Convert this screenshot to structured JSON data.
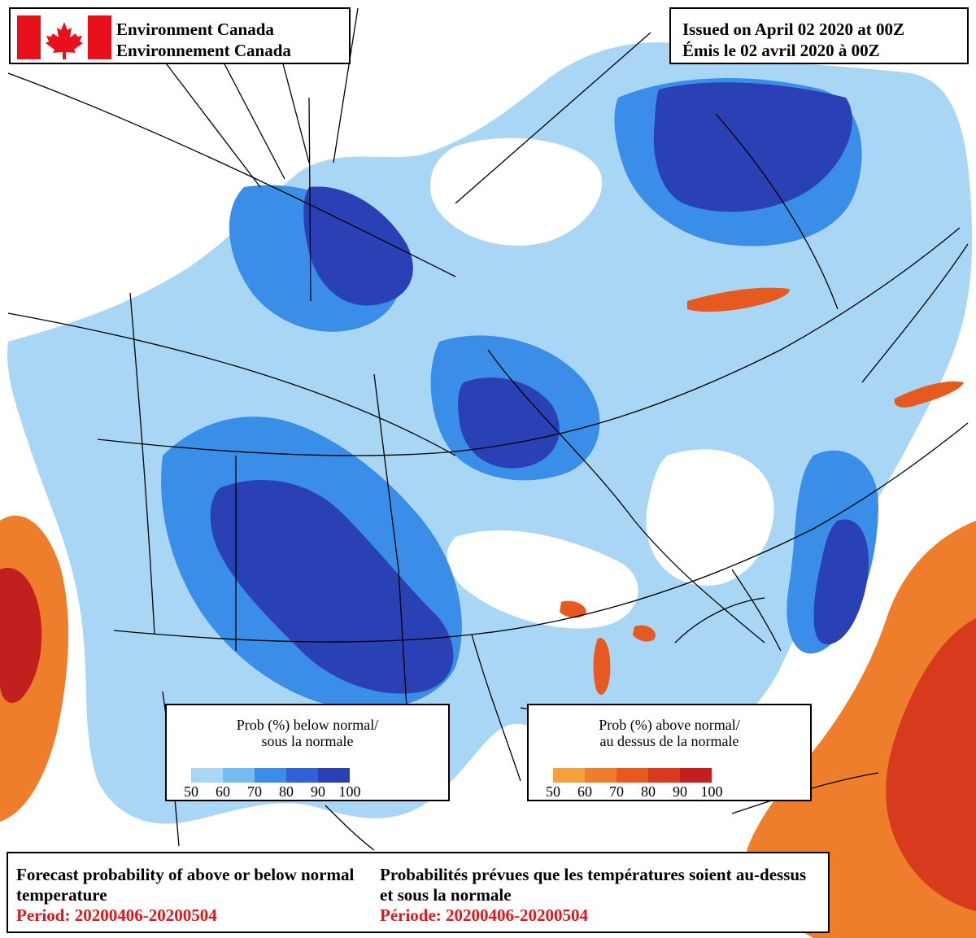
{
  "header": {
    "agency_en": "Environment Canada",
    "agency_fr": "Environnement Canada",
    "flag_icon": "canada-flag-icon",
    "flag_red": "#e8101b"
  },
  "issued": {
    "en": "Issued on April 02 2020 at 00Z",
    "fr": "Émis le 02 avril 2020 à 00Z"
  },
  "legend_below": {
    "title_line1": "Prob (%) below normal/",
    "title_line2": "sous la normale",
    "ticks": [
      "50",
      "60",
      "70",
      "80",
      "90",
      "100"
    ],
    "colors": [
      "#a9d6f5",
      "#75bdf0",
      "#3b8ee8",
      "#2f62d6",
      "#2a40b5",
      "#1d2a8c"
    ]
  },
  "legend_above": {
    "title_line1": "Prob (%) above normal/",
    "title_line2": "au dessus de la normale",
    "ticks": [
      "50",
      "60",
      "70",
      "80",
      "90",
      "100"
    ],
    "colors": [
      "#f2a13c",
      "#ee7e2c",
      "#e65a21",
      "#d83a1d",
      "#c21f1f",
      "#a01820"
    ]
  },
  "caption": {
    "title_en": "Forecast probability of above or below normal temperature",
    "period_en": "Period: 20200406-20200504",
    "title_fr": "Probabilités prévues que les températures soient au-dessus et sous la normale",
    "period_fr": "Période: 20200406-20200504"
  }
}
